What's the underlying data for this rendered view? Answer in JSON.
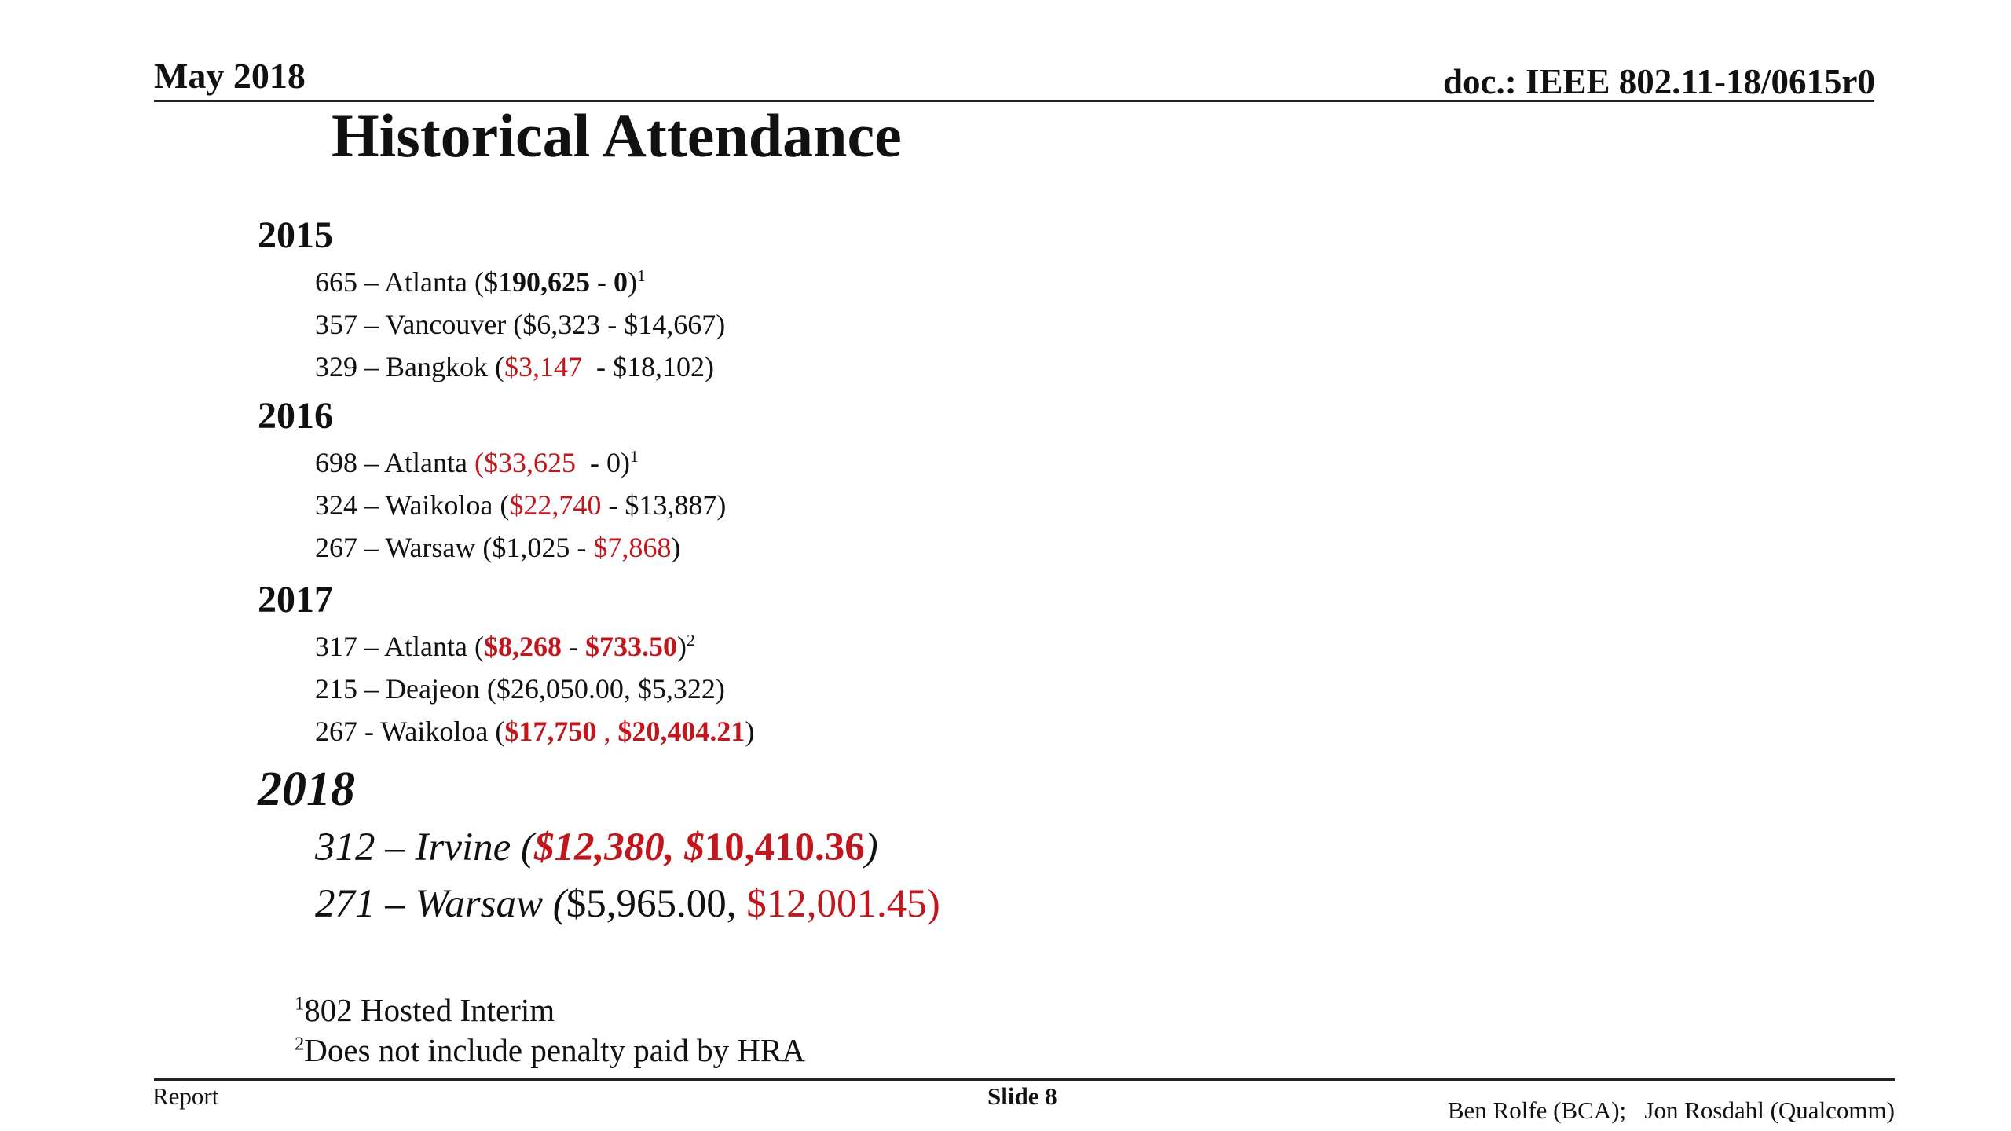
{
  "header": {
    "date": "May 2018",
    "doc_id": "doc.: IEEE 802.11-18/0615r0"
  },
  "title": "Historical Attendance",
  "years": [
    {
      "year": "2015",
      "entries": [
        {
          "lead": "665 – Atlanta ($",
          "first": "190,625 - 0",
          "close": ")",
          "note": "1"
        },
        {
          "lead": "357 – Vancouver ($6,323 - $14,667)"
        },
        {
          "lead": "329 – Bangkok (",
          "first": "$3,147",
          "rest": "  - $18,102)"
        }
      ]
    },
    {
      "year": "2016",
      "entries": [
        {
          "lead": "698 – Atlanta ",
          "first": "($33,625",
          "rest": "  - 0)",
          "note": "1"
        },
        {
          "lead": "324 – Waikoloa (",
          "first": "$22,740",
          "rest": " - $13,887)"
        },
        {
          "lead": "267 – Warsaw ($1,025 - ",
          "first": "$7,868",
          "rest": ")"
        }
      ]
    },
    {
      "year": "2017",
      "entries": [
        {
          "lead": "317 – Atlanta (",
          "first": "$8,268",
          "sep": " - ",
          "second": "$733.50",
          "close": ")",
          "note": "2"
        },
        {
          "lead": "215 – Deajeon ($26,050.00, $5,322)"
        },
        {
          "lead": "267 - Waikoloa (",
          "first": "$17,750",
          "sep": " , ",
          "second": "$20,404.21",
          "close": ")"
        }
      ]
    },
    {
      "year": "2018",
      "entries": [
        {
          "lead": "312 – Irvine (",
          "first": "$12,380, $",
          "second": "10,410.36",
          "close": ")"
        },
        {
          "lead": "271 – Warsaw (",
          "plain": "$5,965.00, ",
          "red": "$12,001.45)"
        }
      ]
    }
  ],
  "footnotes": [
    {
      "mark": "1",
      "text": "802 Hosted Interim"
    },
    {
      "mark": "2",
      "text": "Does not include penalty paid by HRA"
    }
  ],
  "footer": {
    "left": "Report",
    "center": "Slide 8",
    "right": "Ben Rolfe (BCA);   Jon Rosdahl (Qualcomm)"
  }
}
